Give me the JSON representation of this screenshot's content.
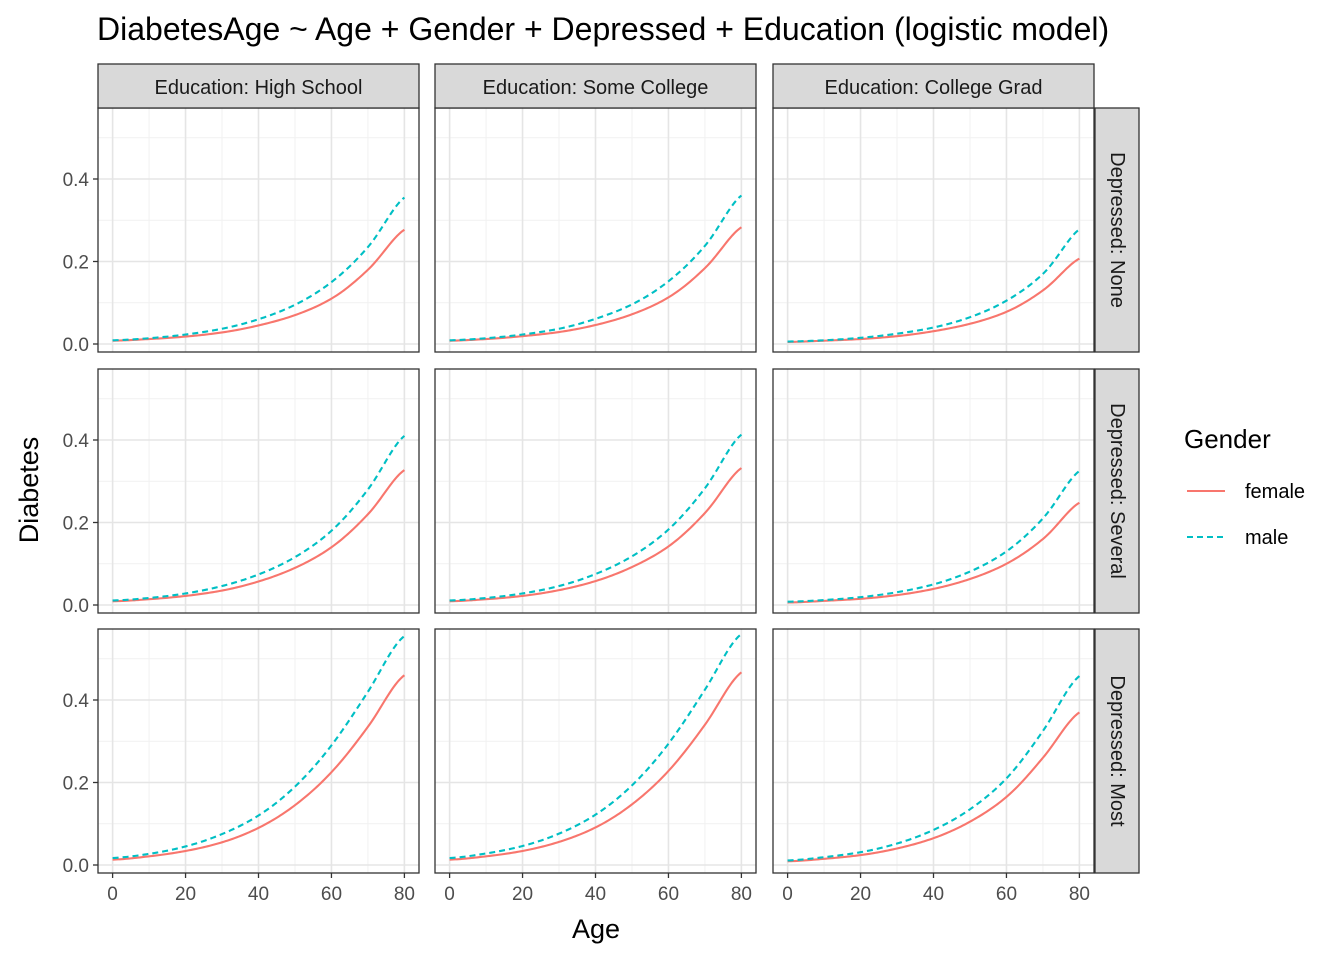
{
  "chart_data": {
    "type": "line",
    "title": "DiabetesAge ~ Age + Gender + Depressed + Education (logistic model)",
    "xlabel": "Age",
    "ylabel": "Diabetes",
    "xlim": [
      0,
      80
    ],
    "ylim": [
      0,
      0.56
    ],
    "x_ticks": [
      0,
      20,
      40,
      60,
      80
    ],
    "x_tick_labels": [
      "0",
      "20",
      "40",
      "60",
      "80"
    ],
    "y_ticks": [
      0,
      0.2,
      0.4
    ],
    "y_tick_labels": [
      "0.0",
      "0.2",
      "0.4"
    ],
    "grid": true,
    "legend": {
      "title": "Gender",
      "position": "right",
      "entries": [
        {
          "label": "female",
          "color": "#F8766D",
          "dash": "solid"
        },
        {
          "label": "male",
          "color": "#00BFC4",
          "dash": "dashed"
        }
      ]
    },
    "columns": [
      "Education: High School",
      "Education: Some College",
      "Education: College Grad"
    ],
    "rows": [
      "Depressed: None",
      "Depressed: Several",
      "Depressed: Most"
    ],
    "x": [
      0,
      10,
      20,
      30,
      40,
      50,
      60,
      70,
      80
    ],
    "panels": [
      {
        "column": "Education: High School",
        "row": "Depressed: None",
        "series": [
          {
            "name": "female",
            "values": [
              0.008,
              0.012,
              0.018,
              0.028,
              0.045,
              0.07,
              0.11,
              0.18,
              0.277
            ]
          },
          {
            "name": "male",
            "values": [
              0.009,
              0.014,
              0.023,
              0.037,
              0.06,
              0.095,
              0.15,
              0.235,
              0.355
            ]
          }
        ]
      },
      {
        "column": "Education: Some College",
        "row": "Depressed: None",
        "series": [
          {
            "name": "female",
            "values": [
              0.008,
              0.012,
              0.019,
              0.029,
              0.046,
              0.072,
              0.113,
              0.184,
              0.283
            ]
          },
          {
            "name": "male",
            "values": [
              0.009,
              0.014,
              0.023,
              0.037,
              0.061,
              0.096,
              0.152,
              0.238,
              0.36
            ]
          }
        ]
      },
      {
        "column": "Education: College Grad",
        "row": "Depressed: None",
        "series": [
          {
            "name": "female",
            "values": [
              0.005,
              0.008,
              0.012,
              0.019,
              0.031,
              0.049,
              0.078,
              0.13,
              0.207
            ]
          },
          {
            "name": "male",
            "values": [
              0.006,
              0.009,
              0.015,
              0.025,
              0.04,
              0.065,
              0.105,
              0.17,
              0.278
            ]
          }
        ]
      },
      {
        "column": "Education: High School",
        "row": "Depressed: Several",
        "series": [
          {
            "name": "female",
            "values": [
              0.009,
              0.014,
              0.022,
              0.035,
              0.057,
              0.09,
              0.14,
              0.22,
              0.327
            ]
          },
          {
            "name": "male",
            "values": [
              0.011,
              0.017,
              0.028,
              0.046,
              0.074,
              0.116,
              0.18,
              0.28,
              0.41
            ]
          }
        ]
      },
      {
        "column": "Education: Some College",
        "row": "Depressed: Several",
        "series": [
          {
            "name": "female",
            "values": [
              0.009,
              0.014,
              0.022,
              0.036,
              0.058,
              0.092,
              0.142,
              0.223,
              0.332
            ]
          },
          {
            "name": "male",
            "values": [
              0.011,
              0.017,
              0.028,
              0.046,
              0.075,
              0.118,
              0.183,
              0.283,
              0.413
            ]
          }
        ]
      },
      {
        "column": "Education: College Grad",
        "row": "Depressed: Several",
        "series": [
          {
            "name": "female",
            "values": [
              0.006,
              0.01,
              0.015,
              0.024,
              0.039,
              0.063,
              0.1,
              0.16,
              0.248
            ]
          },
          {
            "name": "male",
            "values": [
              0.008,
              0.012,
              0.019,
              0.031,
              0.05,
              0.081,
              0.13,
              0.21,
              0.325
            ]
          }
        ]
      },
      {
        "column": "Education: High School",
        "row": "Depressed: Most",
        "series": [
          {
            "name": "female",
            "values": [
              0.013,
              0.021,
              0.034,
              0.055,
              0.09,
              0.145,
              0.225,
              0.335,
              0.46
            ]
          },
          {
            "name": "male",
            "values": [
              0.017,
              0.027,
              0.045,
              0.075,
              0.12,
              0.19,
              0.29,
              0.42,
              0.555
            ]
          }
        ]
      },
      {
        "column": "Education: Some College",
        "row": "Depressed: Most",
        "series": [
          {
            "name": "female",
            "values": [
              0.013,
              0.021,
              0.034,
              0.056,
              0.091,
              0.147,
              0.228,
              0.34,
              0.467
            ]
          },
          {
            "name": "male",
            "values": [
              0.017,
              0.028,
              0.046,
              0.076,
              0.122,
              0.193,
              0.294,
              0.425,
              0.56
            ]
          }
        ]
      },
      {
        "column": "Education: College Grad",
        "row": "Depressed: Most",
        "series": [
          {
            "name": "female",
            "values": [
              0.009,
              0.015,
              0.024,
              0.04,
              0.065,
              0.105,
              0.165,
              0.26,
              0.37
            ]
          },
          {
            "name": "male",
            "values": [
              0.011,
              0.019,
              0.031,
              0.052,
              0.085,
              0.135,
              0.21,
              0.325,
              0.458
            ]
          }
        ]
      }
    ]
  }
}
